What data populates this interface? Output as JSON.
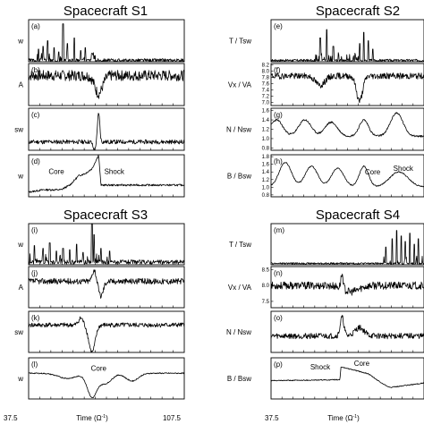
{
  "figure": {
    "time_axis": {
      "min": "37.5",
      "max": "107.5",
      "label_prefix": "Time (",
      "label_omega": "Ω",
      "label_exp": "-1",
      "label_suffix": ")"
    }
  },
  "chart_data": [
    {
      "type": "line",
      "title": "Spacecraft S1",
      "panels": [
        {
          "id": "a",
          "tag": "(a)",
          "ylabel": "T / Tsw",
          "ylabel_visible": "w",
          "yticks": [],
          "ylim": [
            0,
            30
          ],
          "baseline": 1,
          "noise": 1.2,
          "spikes": [
            [
              42,
              8
            ],
            [
              44,
              10
            ],
            [
              46,
              14
            ],
            [
              49,
              9
            ],
            [
              51,
              6
            ],
            [
              53,
              26
            ],
            [
              55,
              12
            ],
            [
              58,
              16
            ],
            [
              61,
              7
            ],
            [
              63,
              9
            ],
            [
              66,
              5
            ]
          ],
          "spike_end": 68,
          "seed": 3
        },
        {
          "id": "b",
          "tag": "(b)",
          "ylabel": "Vx / VA",
          "ylabel_visible": "A",
          "yticks": [],
          "ylim": [
            6.8,
            8.2
          ],
          "baseline": 7.8,
          "noise": 0.18,
          "features": [
            [
              69,
              -0.6,
              2.5
            ]
          ],
          "seed": 7
        },
        {
          "id": "c",
          "tag": "(c)",
          "ylabel": "N / Nsw",
          "ylabel_visible": "sw",
          "yticks": [],
          "ylim": [
            0.8,
            1.8
          ],
          "baseline": 1.0,
          "noise": 0.05,
          "features": [
            [
              69,
              0.7,
              0.7
            ],
            [
              67,
              -0.2,
              0.8
            ]
          ],
          "seed": 11
        },
        {
          "id": "d",
          "tag": "(d)",
          "ylabel": "B / Bsw",
          "ylabel_visible": "w",
          "yticks": [],
          "ylim": [
            0.9,
            1.8
          ],
          "baseline": 1.0,
          "noise": 0.02,
          "ramp": [
            [
              37.5,
              1.0
            ],
            [
              44,
              1.05
            ],
            [
              52,
              1.05
            ],
            [
              56,
              1.15
            ],
            [
              60,
              1.35
            ],
            [
              63,
              1.4
            ],
            [
              66,
              1.5
            ],
            [
              69,
              1.8
            ],
            [
              70,
              1.15
            ],
            [
              107.5,
              1.15
            ]
          ],
          "seed": 13,
          "annotations": [
            {
              "text": "Core",
              "x": 50,
              "y": 1.45
            },
            {
              "text": "Shock",
              "x": 76,
              "y": 1.45
            }
          ]
        }
      ]
    },
    {
      "type": "line",
      "title": "Spacecraft S2",
      "panels": [
        {
          "id": "e",
          "tag": "(e)",
          "ylabel": "T / Tsw",
          "ylabel_visible": "T / Tsw",
          "yticks": [],
          "ylim": [
            0,
            30
          ],
          "baseline": 1,
          "noise": 0.8,
          "spikes": [
            [
              60,
              16
            ],
            [
              63,
              22
            ],
            [
              66,
              10
            ],
            [
              78,
              12
            ],
            [
              80,
              20
            ],
            [
              82,
              14
            ],
            [
              84,
              8
            ]
          ],
          "spike_start": 55,
          "spike_end": 86,
          "seed": 17
        },
        {
          "id": "f",
          "tag": "(f)",
          "ylabel": "Vx / VA",
          "ylabel_visible": "Vx / VA",
          "yticks": [
            "8.2",
            "8.0",
            "7.8",
            "7.6",
            "7.4",
            "7.2",
            "7.0"
          ],
          "ylim": [
            6.9,
            8.25
          ],
          "baseline": 7.85,
          "noise": 0.1,
          "features": [
            [
              78,
              -0.8,
              2.0
            ],
            [
              60,
              -0.3,
              3.0
            ]
          ],
          "seed": 19
        },
        {
          "id": "g",
          "tag": "(g)",
          "ylabel": "N / Nsw",
          "ylabel_visible": "N / Nsw",
          "yticks": [
            "1.6",
            "1.4",
            "1.2",
            "1.0",
            "0.8"
          ],
          "ylim": [
            0.75,
            1.65
          ],
          "baseline": 1.05,
          "noise": 0.02,
          "waves": [
            [
              40,
              0.35,
              4
            ],
            [
              53,
              0.35,
              4
            ],
            [
              65,
              0.3,
              4
            ],
            [
              80,
              0.35,
              3
            ]
          ],
          "features": [
            [
              95,
              0.5,
              4
            ]
          ],
          "seed": 23
        },
        {
          "id": "h",
          "tag": "(h)",
          "ylabel": "B / Bsw",
          "ylabel_visible": "B / Bsw",
          "yticks": [
            "1.8",
            "1.6",
            "1.4",
            "1.2",
            "1.0",
            "0.8"
          ],
          "ylim": [
            0.75,
            1.85
          ],
          "baseline": 1.0,
          "noise": 0.015,
          "waves": [
            [
              44,
              0.65,
              4
            ],
            [
              56,
              0.55,
              4
            ],
            [
              68,
              0.5,
              4
            ],
            [
              80,
              0.55,
              3
            ]
          ],
          "features": [
            [
              96,
              0.4,
              6
            ]
          ],
          "seed": 29,
          "annotations": [
            {
              "text": "Core",
              "x": 84,
              "y": 1.4
            },
            {
              "text": "Shock",
              "x": 98,
              "y": 1.5
            }
          ]
        }
      ]
    },
    {
      "type": "line",
      "title": "Spacecraft S3",
      "panels": [
        {
          "id": "i",
          "tag": "(i)",
          "ylabel": "T / Tsw",
          "ylabel_visible": "w",
          "yticks": [],
          "ylim": [
            0,
            30
          ],
          "baseline": 2,
          "noise": 1.5,
          "spikes": [
            [
              40,
              12
            ],
            [
              44,
              10
            ],
            [
              47,
              14
            ],
            [
              50,
              8
            ],
            [
              53,
              10
            ],
            [
              56,
              9
            ],
            [
              59,
              13
            ],
            [
              62,
              7
            ],
            [
              66,
              28
            ],
            [
              67,
              20
            ],
            [
              70,
              10
            ],
            [
              74,
              8
            ]
          ],
          "spike_end": 76,
          "seed": 31
        },
        {
          "id": "j",
          "tag": "(j)",
          "ylabel": "Vx / VA",
          "ylabel_visible": "A",
          "yticks": [],
          "ylim": [
            6.8,
            8.2
          ],
          "baseline": 7.7,
          "noise": 0.1,
          "features": [
            [
              67,
              0.4,
              1.2
            ],
            [
              70,
              -0.5,
              1.5
            ]
          ],
          "seed": 37
        },
        {
          "id": "k",
          "tag": "(k)",
          "ylabel": "N / Nsw",
          "ylabel_visible": "sw",
          "yticks": [],
          "ylim": [
            0.6,
            1.5
          ],
          "baseline": 1.2,
          "noise": 0.05,
          "features": [
            [
              66,
              -0.6,
              2.0
            ],
            [
              61,
              0.15,
              1.5
            ]
          ],
          "seed": 41
        },
        {
          "id": "l",
          "tag": "(l)",
          "ylabel": "B / Bsw",
          "ylabel_visible": "w",
          "yticks": [],
          "ylim": [
            0.6,
            1.4
          ],
          "baseline": 1.1,
          "noise": 0.01,
          "waves": [
            [
              55,
              -0.1,
              6
            ],
            [
              66,
              -0.45,
              3
            ],
            [
              72,
              -0.2,
              4
            ],
            [
              84,
              -0.15,
              4
            ]
          ],
          "seed": 43,
          "annotations": [
            {
              "text": "Core",
              "x": 69,
              "y": 1.2
            }
          ]
        }
      ]
    },
    {
      "type": "line",
      "title": "Spacecraft S4",
      "panels": [
        {
          "id": "m",
          "tag": "(m)",
          "ylabel": "T / Tsw",
          "ylabel_visible": "T / Tsw",
          "yticks": [],
          "ylim": [
            0,
            30
          ],
          "baseline": 1,
          "noise": 0.6,
          "spikes": [
            [
              90,
              12
            ],
            [
              93,
              18
            ],
            [
              95,
              24
            ],
            [
              97,
              20
            ],
            [
              99,
              16
            ],
            [
              101,
              22
            ],
            [
              103,
              14
            ],
            [
              105,
              18
            ]
          ],
          "spike_start": 88,
          "spike_end": 107.5,
          "seed": 47
        },
        {
          "id": "n",
          "tag": "(n)",
          "ylabel": "Vx / VA",
          "ylabel_visible": "Vx / VA",
          "yticks": [
            "8.5",
            "8.0",
            "7.5"
          ],
          "ylim": [
            7.3,
            8.6
          ],
          "baseline": 8.0,
          "noise": 0.12,
          "features": [
            [
              70,
              0.45,
              0.8
            ],
            [
              74,
              -0.2,
              5
            ]
          ],
          "seed": 53
        },
        {
          "id": "o",
          "tag": "(o)",
          "ylabel": "N / Nsw",
          "ylabel_visible": "N / Nsw",
          "yticks": [],
          "ylim": [
            0.6,
            1.6
          ],
          "baseline": 1.0,
          "noise": 0.07,
          "features": [
            [
              70,
              0.45,
              1.2
            ],
            [
              78,
              0.2,
              3
            ]
          ],
          "seed": 59
        },
        {
          "id": "p",
          "tag": "(p)",
          "ylabel": "B / Bsw",
          "ylabel_visible": "B / Bsw",
          "yticks": [],
          "ylim": [
            0.6,
            1.5
          ],
          "baseline": 1.0,
          "noise": 0.01,
          "ramp": [
            [
              37.5,
              1.0
            ],
            [
              69,
              1.02
            ],
            [
              69.5,
              1.3
            ],
            [
              74,
              1.25
            ],
            [
              82,
              1.15
            ],
            [
              88,
              0.95
            ],
            [
              92,
              0.85
            ],
            [
              100,
              0.9
            ],
            [
              107.5,
              0.95
            ]
          ],
          "seed": 61,
          "annotations": [
            {
              "text": "Shock",
              "x": 60,
              "y": 1.3
            },
            {
              "text": "Core",
              "x": 79,
              "y": 1.38
            }
          ]
        }
      ]
    }
  ]
}
